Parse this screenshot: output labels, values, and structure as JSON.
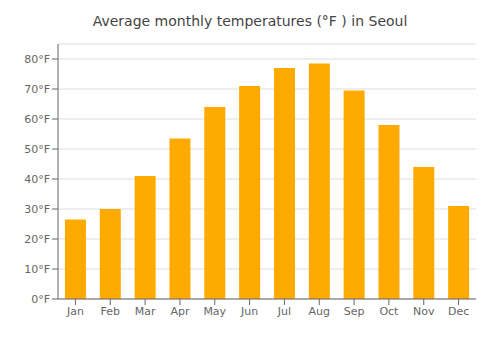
{
  "chart_data": {
    "type": "bar",
    "title": "Average monthly temperatures (°F ) in Seoul",
    "categories": [
      "Jan",
      "Feb",
      "Mar",
      "Apr",
      "May",
      "Jun",
      "Jul",
      "Aug",
      "Sep",
      "Oct",
      "Nov",
      "Dec"
    ],
    "values": [
      26.5,
      30.0,
      41.0,
      53.5,
      64.0,
      71.0,
      77.0,
      78.5,
      69.5,
      58.0,
      44.0,
      31.0
    ],
    "color": "#FFAA00",
    "ylim": [
      0,
      85
    ],
    "yticks": [
      {
        "value": 0,
        "label": "0°F"
      },
      {
        "value": 10,
        "label": "10°F"
      },
      {
        "value": 20,
        "label": "20°F"
      },
      {
        "value": 30,
        "label": "30°F"
      },
      {
        "value": 40,
        "label": "40°F"
      },
      {
        "value": 50,
        "label": "50°F"
      },
      {
        "value": 60,
        "label": "60°F"
      },
      {
        "value": 70,
        "label": "70°F"
      },
      {
        "value": 80,
        "label": "80°F"
      }
    ],
    "grid": true
  }
}
